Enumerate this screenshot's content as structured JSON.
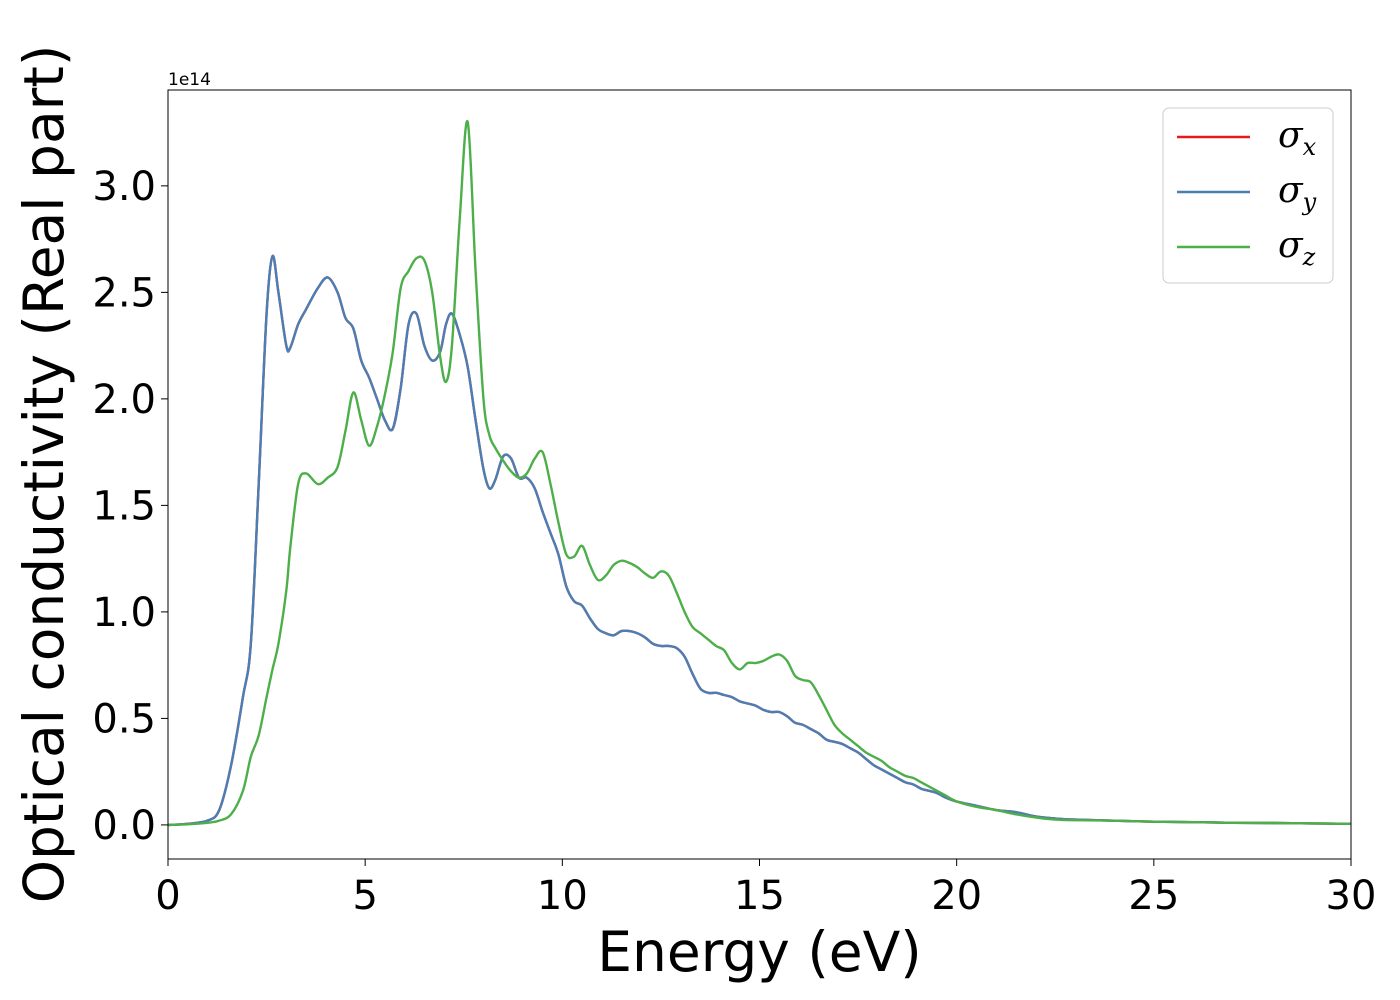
{
  "chart_data": {
    "type": "line",
    "xlabel": "Energy (eV)",
    "ylabel": "Optical conductivity (Real part)",
    "y_offset_label": "1e14",
    "y_scale": 100000000000000.0,
    "xlim": [
      0,
      30
    ],
    "ylim": [
      -0.16,
      3.45
    ],
    "x_ticks": [
      0,
      5,
      10,
      15,
      20,
      25,
      30
    ],
    "x_tick_labels": [
      "0",
      "5",
      "10",
      "15",
      "20",
      "25",
      "30"
    ],
    "y_ticks": [
      0.0,
      0.5,
      1.0,
      1.5,
      2.0,
      2.5,
      3.0
    ],
    "y_tick_labels": [
      "0.0",
      "0.5",
      "1.0",
      "1.5",
      "2.0",
      "2.5",
      "3.0"
    ],
    "grid": false,
    "legend_position": "top-right",
    "x": [
      0,
      0.5,
      1.0,
      1.3,
      1.6,
      1.9,
      2.1,
      2.3,
      2.5,
      2.65,
      2.8,
      3.0,
      3.1,
      3.3,
      3.5,
      3.8,
      4.05,
      4.3,
      4.5,
      4.7,
      4.9,
      5.1,
      5.3,
      5.5,
      5.7,
      5.9,
      6.1,
      6.3,
      6.5,
      6.7,
      6.9,
      7.05,
      7.2,
      7.4,
      7.6,
      7.8,
      8.0,
      8.15,
      8.3,
      8.5,
      8.7,
      8.9,
      9.1,
      9.3,
      9.5,
      9.7,
      9.9,
      10.1,
      10.3,
      10.5,
      10.7,
      10.9,
      11.1,
      11.3,
      11.5,
      11.7,
      11.9,
      12.1,
      12.3,
      12.5,
      12.7,
      12.9,
      13.1,
      13.3,
      13.5,
      13.7,
      13.9,
      14.1,
      14.3,
      14.5,
      14.7,
      14.9,
      15.1,
      15.3,
      15.5,
      15.7,
      15.9,
      16.1,
      16.3,
      16.5,
      16.7,
      16.9,
      17.1,
      17.3,
      17.5,
      17.7,
      17.9,
      18.1,
      18.3,
      18.5,
      18.7,
      18.9,
      19.1,
      19.3,
      19.5,
      19.7,
      20.0,
      20.5,
      21.0,
      21.5,
      22.0,
      22.5,
      23.0,
      24.0,
      25.0,
      26.0,
      27.0,
      28.0,
      29.0,
      30.0
    ],
    "series": [
      {
        "name": "σx",
        "color": "#e41a1c",
        "values": [
          0,
          0.005,
          0.02,
          0.07,
          0.28,
          0.6,
          0.85,
          1.6,
          2.4,
          2.67,
          2.5,
          2.25,
          2.24,
          2.35,
          2.42,
          2.52,
          2.57,
          2.5,
          2.38,
          2.33,
          2.18,
          2.1,
          2.0,
          1.9,
          1.86,
          2.05,
          2.35,
          2.4,
          2.25,
          2.18,
          2.22,
          2.35,
          2.4,
          2.3,
          2.15,
          1.9,
          1.67,
          1.58,
          1.62,
          1.73,
          1.72,
          1.63,
          1.63,
          1.58,
          1.47,
          1.37,
          1.27,
          1.12,
          1.05,
          1.03,
          0.97,
          0.92,
          0.9,
          0.89,
          0.91,
          0.91,
          0.9,
          0.88,
          0.85,
          0.84,
          0.84,
          0.83,
          0.79,
          0.71,
          0.64,
          0.62,
          0.62,
          0.61,
          0.6,
          0.58,
          0.57,
          0.56,
          0.54,
          0.53,
          0.53,
          0.51,
          0.48,
          0.47,
          0.45,
          0.43,
          0.4,
          0.39,
          0.38,
          0.36,
          0.34,
          0.31,
          0.28,
          0.26,
          0.24,
          0.22,
          0.2,
          0.19,
          0.17,
          0.16,
          0.15,
          0.13,
          0.11,
          0.09,
          0.07,
          0.06,
          0.04,
          0.03,
          0.025,
          0.02,
          0.015,
          0.013,
          0.01,
          0.009,
          0.007,
          0.005
        ]
      },
      {
        "name": "σy",
        "color": "#4a7fb5",
        "values": [
          0,
          0.005,
          0.02,
          0.07,
          0.28,
          0.6,
          0.85,
          1.6,
          2.4,
          2.67,
          2.5,
          2.25,
          2.24,
          2.35,
          2.42,
          2.52,
          2.57,
          2.5,
          2.38,
          2.33,
          2.18,
          2.1,
          2.0,
          1.9,
          1.86,
          2.05,
          2.35,
          2.4,
          2.25,
          2.18,
          2.22,
          2.35,
          2.4,
          2.3,
          2.15,
          1.9,
          1.67,
          1.58,
          1.62,
          1.73,
          1.72,
          1.63,
          1.63,
          1.58,
          1.47,
          1.37,
          1.27,
          1.12,
          1.05,
          1.03,
          0.97,
          0.92,
          0.9,
          0.89,
          0.91,
          0.91,
          0.9,
          0.88,
          0.85,
          0.84,
          0.84,
          0.83,
          0.79,
          0.71,
          0.64,
          0.62,
          0.62,
          0.61,
          0.6,
          0.58,
          0.57,
          0.56,
          0.54,
          0.53,
          0.53,
          0.51,
          0.48,
          0.47,
          0.45,
          0.43,
          0.4,
          0.39,
          0.38,
          0.36,
          0.34,
          0.31,
          0.28,
          0.26,
          0.24,
          0.22,
          0.2,
          0.19,
          0.17,
          0.16,
          0.15,
          0.13,
          0.11,
          0.09,
          0.07,
          0.06,
          0.04,
          0.03,
          0.025,
          0.02,
          0.015,
          0.013,
          0.01,
          0.009,
          0.007,
          0.005
        ]
      },
      {
        "name": "σz",
        "color": "#4daf4a",
        "values": [
          0,
          0.003,
          0.01,
          0.02,
          0.05,
          0.16,
          0.32,
          0.42,
          0.6,
          0.73,
          0.85,
          1.1,
          1.3,
          1.6,
          1.65,
          1.6,
          1.63,
          1.68,
          1.85,
          2.03,
          1.9,
          1.78,
          1.87,
          2.02,
          2.22,
          2.52,
          2.6,
          2.66,
          2.65,
          2.5,
          2.2,
          2.08,
          2.25,
          2.85,
          3.3,
          2.6,
          2.0,
          1.83,
          1.77,
          1.71,
          1.66,
          1.63,
          1.65,
          1.72,
          1.75,
          1.6,
          1.42,
          1.27,
          1.26,
          1.31,
          1.22,
          1.15,
          1.17,
          1.22,
          1.24,
          1.23,
          1.21,
          1.18,
          1.16,
          1.19,
          1.17,
          1.09,
          1.0,
          0.93,
          0.9,
          0.87,
          0.84,
          0.82,
          0.76,
          0.73,
          0.76,
          0.76,
          0.77,
          0.79,
          0.8,
          0.77,
          0.7,
          0.68,
          0.67,
          0.61,
          0.54,
          0.47,
          0.43,
          0.4,
          0.37,
          0.34,
          0.32,
          0.3,
          0.27,
          0.25,
          0.23,
          0.22,
          0.2,
          0.18,
          0.16,
          0.14,
          0.11,
          0.085,
          0.07,
          0.05,
          0.035,
          0.025,
          0.022,
          0.02,
          0.015,
          0.013,
          0.01,
          0.009,
          0.007,
          0.005
        ]
      }
    ]
  }
}
